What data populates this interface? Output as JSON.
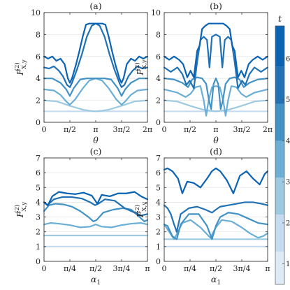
{
  "colorbar": {
    "label": "t",
    "ticks": [
      1,
      2,
      3,
      4,
      5,
      6
    ],
    "range": [
      0.5,
      6.8
    ],
    "bands": [
      {
        "from": 0.5,
        "to": 1.3,
        "color": "#deebf7"
      },
      {
        "from": 1.3,
        "to": 2.2,
        "color": "#c6dbef"
      },
      {
        "from": 2.2,
        "to": 3.1,
        "color": "#9ecae1"
      },
      {
        "from": 3.1,
        "to": 4.0,
        "color": "#6baed6"
      },
      {
        "from": 4.0,
        "to": 4.9,
        "color": "#4292c6"
      },
      {
        "from": 4.9,
        "to": 5.8,
        "color": "#2171b5"
      },
      {
        "from": 5.8,
        "to": 6.8,
        "color": "#0b63b4"
      }
    ]
  },
  "chart_data": [
    {
      "type": "line",
      "panel": "(a)",
      "title": "(a)",
      "xlabel": "θ",
      "ylabel_main": "F",
      "ylabel_sup": "(2)",
      "ylabel_sub": "X,y",
      "xlim": [
        0,
        6.2832
      ],
      "ylim": [
        0,
        10
      ],
      "xticks": [
        0,
        1.5708,
        3.1416,
        4.7124,
        6.2832
      ],
      "xticklabels": [
        "0",
        "π/2",
        "π",
        "3π/2",
        "2π"
      ],
      "yticks": [
        0,
        2,
        4,
        6,
        8,
        10
      ],
      "grid": "horizontal",
      "series": [
        {
          "t": 1,
          "color": "#c6dbef",
          "x": [
            0,
            0.79,
            1.57,
            2.36,
            3.14,
            3.93,
            4.71,
            5.5,
            6.28
          ],
          "y": [
            1,
            1,
            1,
            1,
            1,
            1,
            1,
            1,
            1
          ]
        },
        {
          "t": 2,
          "color": "#9ecae1",
          "x": [
            0,
            0.79,
            1.57,
            2.36,
            2.75,
            3.14,
            3.53,
            3.93,
            4.71,
            5.5,
            6.28
          ],
          "y": [
            2,
            1.9,
            1.5,
            1.15,
            1.05,
            1,
            1.05,
            1.15,
            1.5,
            1.9,
            2
          ]
        },
        {
          "t": 3,
          "color": "#6baed6",
          "x": [
            0,
            0.6,
            1.0,
            1.35,
            1.57,
            1.9,
            2.36,
            2.75,
            3.14,
            3.53,
            3.93,
            4.38,
            4.71,
            4.93,
            5.28,
            5.68,
            6.28
          ],
          "y": [
            3,
            2.9,
            2.5,
            1.9,
            1.6,
            2.1,
            3.1,
            3.8,
            4,
            3.8,
            3.1,
            2.1,
            1.6,
            1.9,
            2.5,
            2.9,
            3
          ]
        },
        {
          "t": 4,
          "color": "#4292c6",
          "x": [
            0,
            0.5,
            1.0,
            1.35,
            1.57,
            1.8,
            2.2,
            2.6,
            3.14,
            3.68,
            4.08,
            4.48,
            4.71,
            4.93,
            5.28,
            5.78,
            6.28
          ],
          "y": [
            4,
            4,
            3.6,
            3.0,
            2.4,
            3.1,
            3.9,
            4.0,
            4.0,
            4.0,
            3.9,
            3.1,
            2.4,
            3.0,
            3.6,
            4,
            4
          ]
        },
        {
          "t": 5,
          "color": "#2171b5",
          "x": [
            0,
            0.3,
            0.6,
            0.9,
            1.15,
            1.4,
            1.57,
            1.7,
            2.0,
            2.3,
            2.6,
            2.9,
            3.14,
            3.38,
            3.68,
            3.98,
            4.28,
            4.58,
            4.71,
            4.88,
            5.13,
            5.38,
            5.68,
            5.98,
            6.28
          ],
          "y": [
            5,
            4.9,
            5.1,
            4.7,
            4.2,
            3.4,
            3.2,
            3.6,
            4.8,
            6.2,
            7.8,
            8.8,
            9,
            8.8,
            7.8,
            6.2,
            4.8,
            3.6,
            3.2,
            3.4,
            4.2,
            4.7,
            5.1,
            4.9,
            5
          ]
        },
        {
          "t": 6,
          "color": "#0b63b4",
          "x": [
            0,
            0.25,
            0.5,
            0.75,
            1.0,
            1.25,
            1.45,
            1.57,
            1.7,
            1.95,
            2.15,
            2.35,
            2.55,
            2.75,
            2.95,
            3.14,
            3.33,
            3.53,
            3.73,
            3.93,
            4.13,
            4.33,
            4.58,
            4.71,
            4.83,
            5.03,
            5.28,
            5.53,
            5.78,
            6.03,
            6.28
          ],
          "y": [
            6,
            5.8,
            6.0,
            5.6,
            5.8,
            5.3,
            4.0,
            3.6,
            4.0,
            5.3,
            6.5,
            7.8,
            8.9,
            9.0,
            9.0,
            9.0,
            9.0,
            9.0,
            8.9,
            7.8,
            6.5,
            5.3,
            4.0,
            3.6,
            4.0,
            5.3,
            5.8,
            5.6,
            6.0,
            5.8,
            6
          ]
        }
      ]
    },
    {
      "type": "line",
      "panel": "(b)",
      "title": "(b)",
      "xlabel": "θ",
      "ylabel_main": "F",
      "ylabel_sup": "(2)",
      "ylabel_sub": "X,y",
      "xlim": [
        0,
        6.2832
      ],
      "ylim": [
        0,
        10
      ],
      "xticks": [
        0,
        1.5708,
        3.1416,
        4.7124,
        6.2832
      ],
      "xticklabels": [
        "0",
        "π/2",
        "π",
        "3π/2",
        "2π"
      ],
      "yticks": [
        0,
        2,
        4,
        6,
        8,
        10
      ],
      "grid": "horizontal",
      "series": [
        {
          "t": 1,
          "color": "#c6dbef",
          "x": [
            0,
            0.79,
            1.57,
            2.36,
            3.14,
            3.93,
            4.71,
            5.5,
            6.28
          ],
          "y": [
            1,
            1,
            1,
            1,
            1,
            1,
            1,
            1,
            1
          ]
        },
        {
          "t": 2,
          "color": "#9ecae1",
          "x": [
            0,
            0.79,
            1.57,
            2.36,
            3.14,
            3.93,
            4.71,
            5.5,
            6.28
          ],
          "y": [
            2,
            1.9,
            1.5,
            1.15,
            1,
            1.15,
            1.5,
            1.9,
            2
          ]
        },
        {
          "t": 3,
          "color": "#6baed6",
          "x": [
            0,
            0.8,
            1.3,
            1.6,
            1.9,
            2.2,
            2.4,
            2.55,
            2.7,
            2.9,
            3.14,
            3.38,
            3.58,
            3.73,
            3.88,
            4.08,
            4.38,
            4.68,
            4.98,
            5.48,
            6.28
          ],
          "y": [
            3,
            2.7,
            2.3,
            2.6,
            3.2,
            3.3,
            2.0,
            0.6,
            2.0,
            3.2,
            3.3,
            3.2,
            2.0,
            0.6,
            2.0,
            3.3,
            3.2,
            2.6,
            2.3,
            2.7,
            3
          ]
        },
        {
          "t": 4,
          "color": "#4292c6",
          "x": [
            0,
            0.6,
            1.1,
            1.45,
            1.7,
            2.0,
            2.3,
            2.55,
            2.72,
            2.85,
            3.0,
            3.14,
            3.28,
            3.43,
            3.56,
            3.73,
            3.98,
            4.28,
            4.58,
            4.83,
            5.18,
            5.68,
            6.28
          ],
          "y": [
            4,
            3.9,
            3.6,
            3.2,
            3.9,
            4.1,
            4.0,
            3.5,
            2.0,
            1.2,
            3.5,
            4.0,
            3.5,
            1.2,
            2.0,
            3.5,
            4.0,
            4.1,
            3.9,
            3.2,
            3.6,
            3.9,
            4
          ]
        },
        {
          "t": 5,
          "color": "#2171b5",
          "x": [
            0,
            0.4,
            0.8,
            1.1,
            1.35,
            1.55,
            1.8,
            2.0,
            2.2,
            2.4,
            2.6,
            2.75,
            2.9,
            3.14,
            3.38,
            3.53,
            3.68,
            3.88,
            4.08,
            4.28,
            4.48,
            4.73,
            4.93,
            5.18,
            5.48,
            5.88,
            6.28
          ],
          "y": [
            5,
            4.6,
            5.0,
            4.4,
            3.4,
            3.8,
            3.1,
            5.5,
            7.5,
            7.8,
            7.5,
            5.0,
            7.8,
            8.0,
            7.8,
            5.0,
            7.5,
            7.8,
            7.5,
            5.5,
            3.1,
            3.8,
            3.4,
            4.4,
            5.0,
            4.6,
            5
          ]
        },
        {
          "t": 6,
          "color": "#0b63b4",
          "x": [
            0,
            0.3,
            0.6,
            0.9,
            1.15,
            1.4,
            1.6,
            1.8,
            2.0,
            2.15,
            2.3,
            2.5,
            2.7,
            2.9,
            3.14,
            3.38,
            3.58,
            3.78,
            3.98,
            4.13,
            4.28,
            4.48,
            4.68,
            4.88,
            5.13,
            5.38,
            5.68,
            5.98,
            6.28
          ],
          "y": [
            6,
            5.7,
            6.0,
            5.7,
            5.3,
            4.1,
            4.7,
            4.1,
            6.5,
            7.0,
            8.5,
            8.8,
            9.0,
            9.0,
            9.0,
            9.0,
            9.0,
            8.8,
            8.5,
            7.0,
            6.5,
            4.1,
            4.7,
            4.1,
            5.3,
            5.7,
            6.0,
            5.7,
            6
          ]
        }
      ]
    },
    {
      "type": "line",
      "panel": "(c)",
      "title": "(c)",
      "xlabel": "α",
      "xlabel_sub": "1",
      "ylabel_main": "F",
      "ylabel_sup": "(2)",
      "ylabel_sub": "X,y",
      "xlim": [
        0,
        3.1416
      ],
      "ylim": [
        0,
        7
      ],
      "xticks": [
        0,
        0.7854,
        1.5708,
        2.3562,
        3.1416
      ],
      "xticklabels": [
        "0",
        "π/4",
        "π/2",
        "3π/4",
        "π"
      ],
      "yticks": [
        0,
        1,
        2,
        3,
        4,
        5,
        6,
        7
      ],
      "grid": "horizontal",
      "series": [
        {
          "t": 1,
          "color": "#c6dbef",
          "x": [
            0,
            0.79,
            1.57,
            2.36,
            3.14
          ],
          "y": [
            1,
            1,
            1,
            1,
            1
          ]
        },
        {
          "t": 2,
          "color": "#9ecae1",
          "x": [
            0,
            0.79,
            1.57,
            2.36,
            3.14
          ],
          "y": [
            1.75,
            1.75,
            1.75,
            1.75,
            1.75
          ]
        },
        {
          "t": 3,
          "color": "#6baed6",
          "x": [
            0,
            0.2,
            0.45,
            0.79,
            1.1,
            1.4,
            1.57,
            1.75,
            2.05,
            2.35,
            2.65,
            2.95,
            3.14
          ],
          "y": [
            2.5,
            2.6,
            2.55,
            2.45,
            2.3,
            2.35,
            2.5,
            2.35,
            2.3,
            2.45,
            2.55,
            2.6,
            2.5
          ]
        },
        {
          "t": 4,
          "color": "#4292c6",
          "x": [
            0,
            0.15,
            0.35,
            0.6,
            0.85,
            1.1,
            1.35,
            1.5,
            1.6,
            1.8,
            2.1,
            2.4,
            2.65,
            2.9,
            3.05,
            3.14
          ],
          "y": [
            3.4,
            3.8,
            3.9,
            3.85,
            3.7,
            3.4,
            3.0,
            2.7,
            2.8,
            3.3,
            3.5,
            3.6,
            3.5,
            3.0,
            2.7,
            2.8
          ]
        },
        {
          "t": 5,
          "color": "#2171b5",
          "x": [
            0,
            0.1,
            0.3,
            0.55,
            0.85,
            1.15,
            1.4,
            1.55,
            1.65,
            1.85,
            2.15,
            2.45,
            2.75,
            2.95,
            3.14
          ],
          "y": [
            4.0,
            3.8,
            4.2,
            4.35,
            4.35,
            4.25,
            4.0,
            3.8,
            3.9,
            4.2,
            4.1,
            3.6,
            3.3,
            3.1,
            3.2
          ]
        },
        {
          "t": 6,
          "color": "#0b63b4",
          "x": [
            0,
            0.12,
            0.25,
            0.45,
            0.7,
            0.95,
            1.2,
            1.45,
            1.62,
            1.75,
            2.0,
            2.25,
            2.5,
            2.75,
            2.95,
            3.14
          ],
          "y": [
            4.0,
            3.8,
            4.4,
            4.7,
            4.6,
            4.55,
            4.65,
            4.45,
            3.9,
            4.5,
            4.4,
            4.6,
            4.6,
            4.7,
            4.4,
            4.2
          ]
        }
      ]
    },
    {
      "type": "line",
      "panel": "(d)",
      "title": "(d)",
      "xlabel": "α",
      "xlabel_sub": "1",
      "ylabel_main": "F",
      "ylabel_sup": "(2)",
      "ylabel_sub": "X,y",
      "xlim": [
        0,
        3.1416
      ],
      "ylim": [
        0,
        7
      ],
      "xticks": [
        0,
        0.7854,
        1.5708,
        2.3562,
        3.1416
      ],
      "xticklabels": [
        "0",
        "π/4",
        "π/2",
        "3π/4",
        "π"
      ],
      "yticks": [
        0,
        1,
        2,
        3,
        4,
        5,
        6,
        7
      ],
      "grid": "horizontal",
      "series": [
        {
          "t": 1,
          "color": "#c6dbef",
          "x": [
            0,
            0.79,
            1.57,
            2.36,
            3.14
          ],
          "y": [
            1,
            1,
            1,
            1,
            1
          ]
        },
        {
          "t": 2,
          "color": "#9ecae1",
          "x": [
            0,
            0.3,
            0.5,
            0.79,
            1.2,
            1.57,
            1.95,
            2.36,
            2.6,
            2.85,
            3.14
          ],
          "y": [
            1.5,
            1.5,
            1.5,
            1.5,
            1.5,
            1.5,
            1.5,
            1.5,
            1.5,
            1.5,
            1.5
          ]
        },
        {
          "t": 3,
          "color": "#6baed6",
          "x": [
            0,
            0.15,
            0.3,
            0.42,
            0.55,
            0.8,
            1.1,
            1.4,
            1.57,
            1.75,
            2.05,
            2.35,
            2.6,
            2.85,
            3.0,
            3.14
          ],
          "y": [
            2.5,
            2.0,
            1.5,
            2.0,
            2.6,
            2.8,
            2.3,
            1.6,
            2.3,
            2.8,
            2.7,
            2.3,
            1.9,
            1.6,
            1.7,
            1.9
          ]
        },
        {
          "t": 4,
          "color": "#4292c6",
          "x": [
            0,
            0.1,
            0.25,
            0.38,
            0.5,
            0.75,
            1.05,
            1.3,
            1.45,
            1.57,
            1.7,
            1.95,
            2.25,
            2.55,
            2.85,
            3.14
          ],
          "y": [
            2.5,
            2.4,
            1.7,
            1.5,
            2.5,
            3.2,
            3.2,
            2.4,
            1.5,
            2.4,
            3.0,
            3.3,
            3.2,
            2.9,
            2.6,
            2.5
          ]
        },
        {
          "t": 5,
          "color": "#2171b5",
          "x": [
            0,
            0.1,
            0.2,
            0.3,
            0.38,
            0.5,
            0.75,
            1.0,
            1.25,
            1.45,
            1.57,
            1.7,
            1.95,
            2.2,
            2.45,
            2.7,
            2.95,
            3.14
          ],
          "y": [
            3.8,
            3.6,
            3.2,
            2.5,
            2.0,
            3.2,
            3.6,
            3.7,
            3.5,
            3.3,
            3.5,
            3.7,
            3.8,
            3.9,
            4.0,
            4.0,
            3.9,
            3.8
          ]
        },
        {
          "t": 6,
          "color": "#0b63b4",
          "x": [
            0,
            0.1,
            0.25,
            0.42,
            0.55,
            0.7,
            0.9,
            1.1,
            1.3,
            1.45,
            1.57,
            1.7,
            1.9,
            2.1,
            2.3,
            2.5,
            2.7,
            2.9,
            3.05,
            3.14
          ],
          "y": [
            6.2,
            6.3,
            6.1,
            5.6,
            4.6,
            5.4,
            5.3,
            5.0,
            5.6,
            6.1,
            6.3,
            6.1,
            5.5,
            4.6,
            5.8,
            6.1,
            5.6,
            5.2,
            5.9,
            6.1
          ]
        }
      ]
    }
  ]
}
